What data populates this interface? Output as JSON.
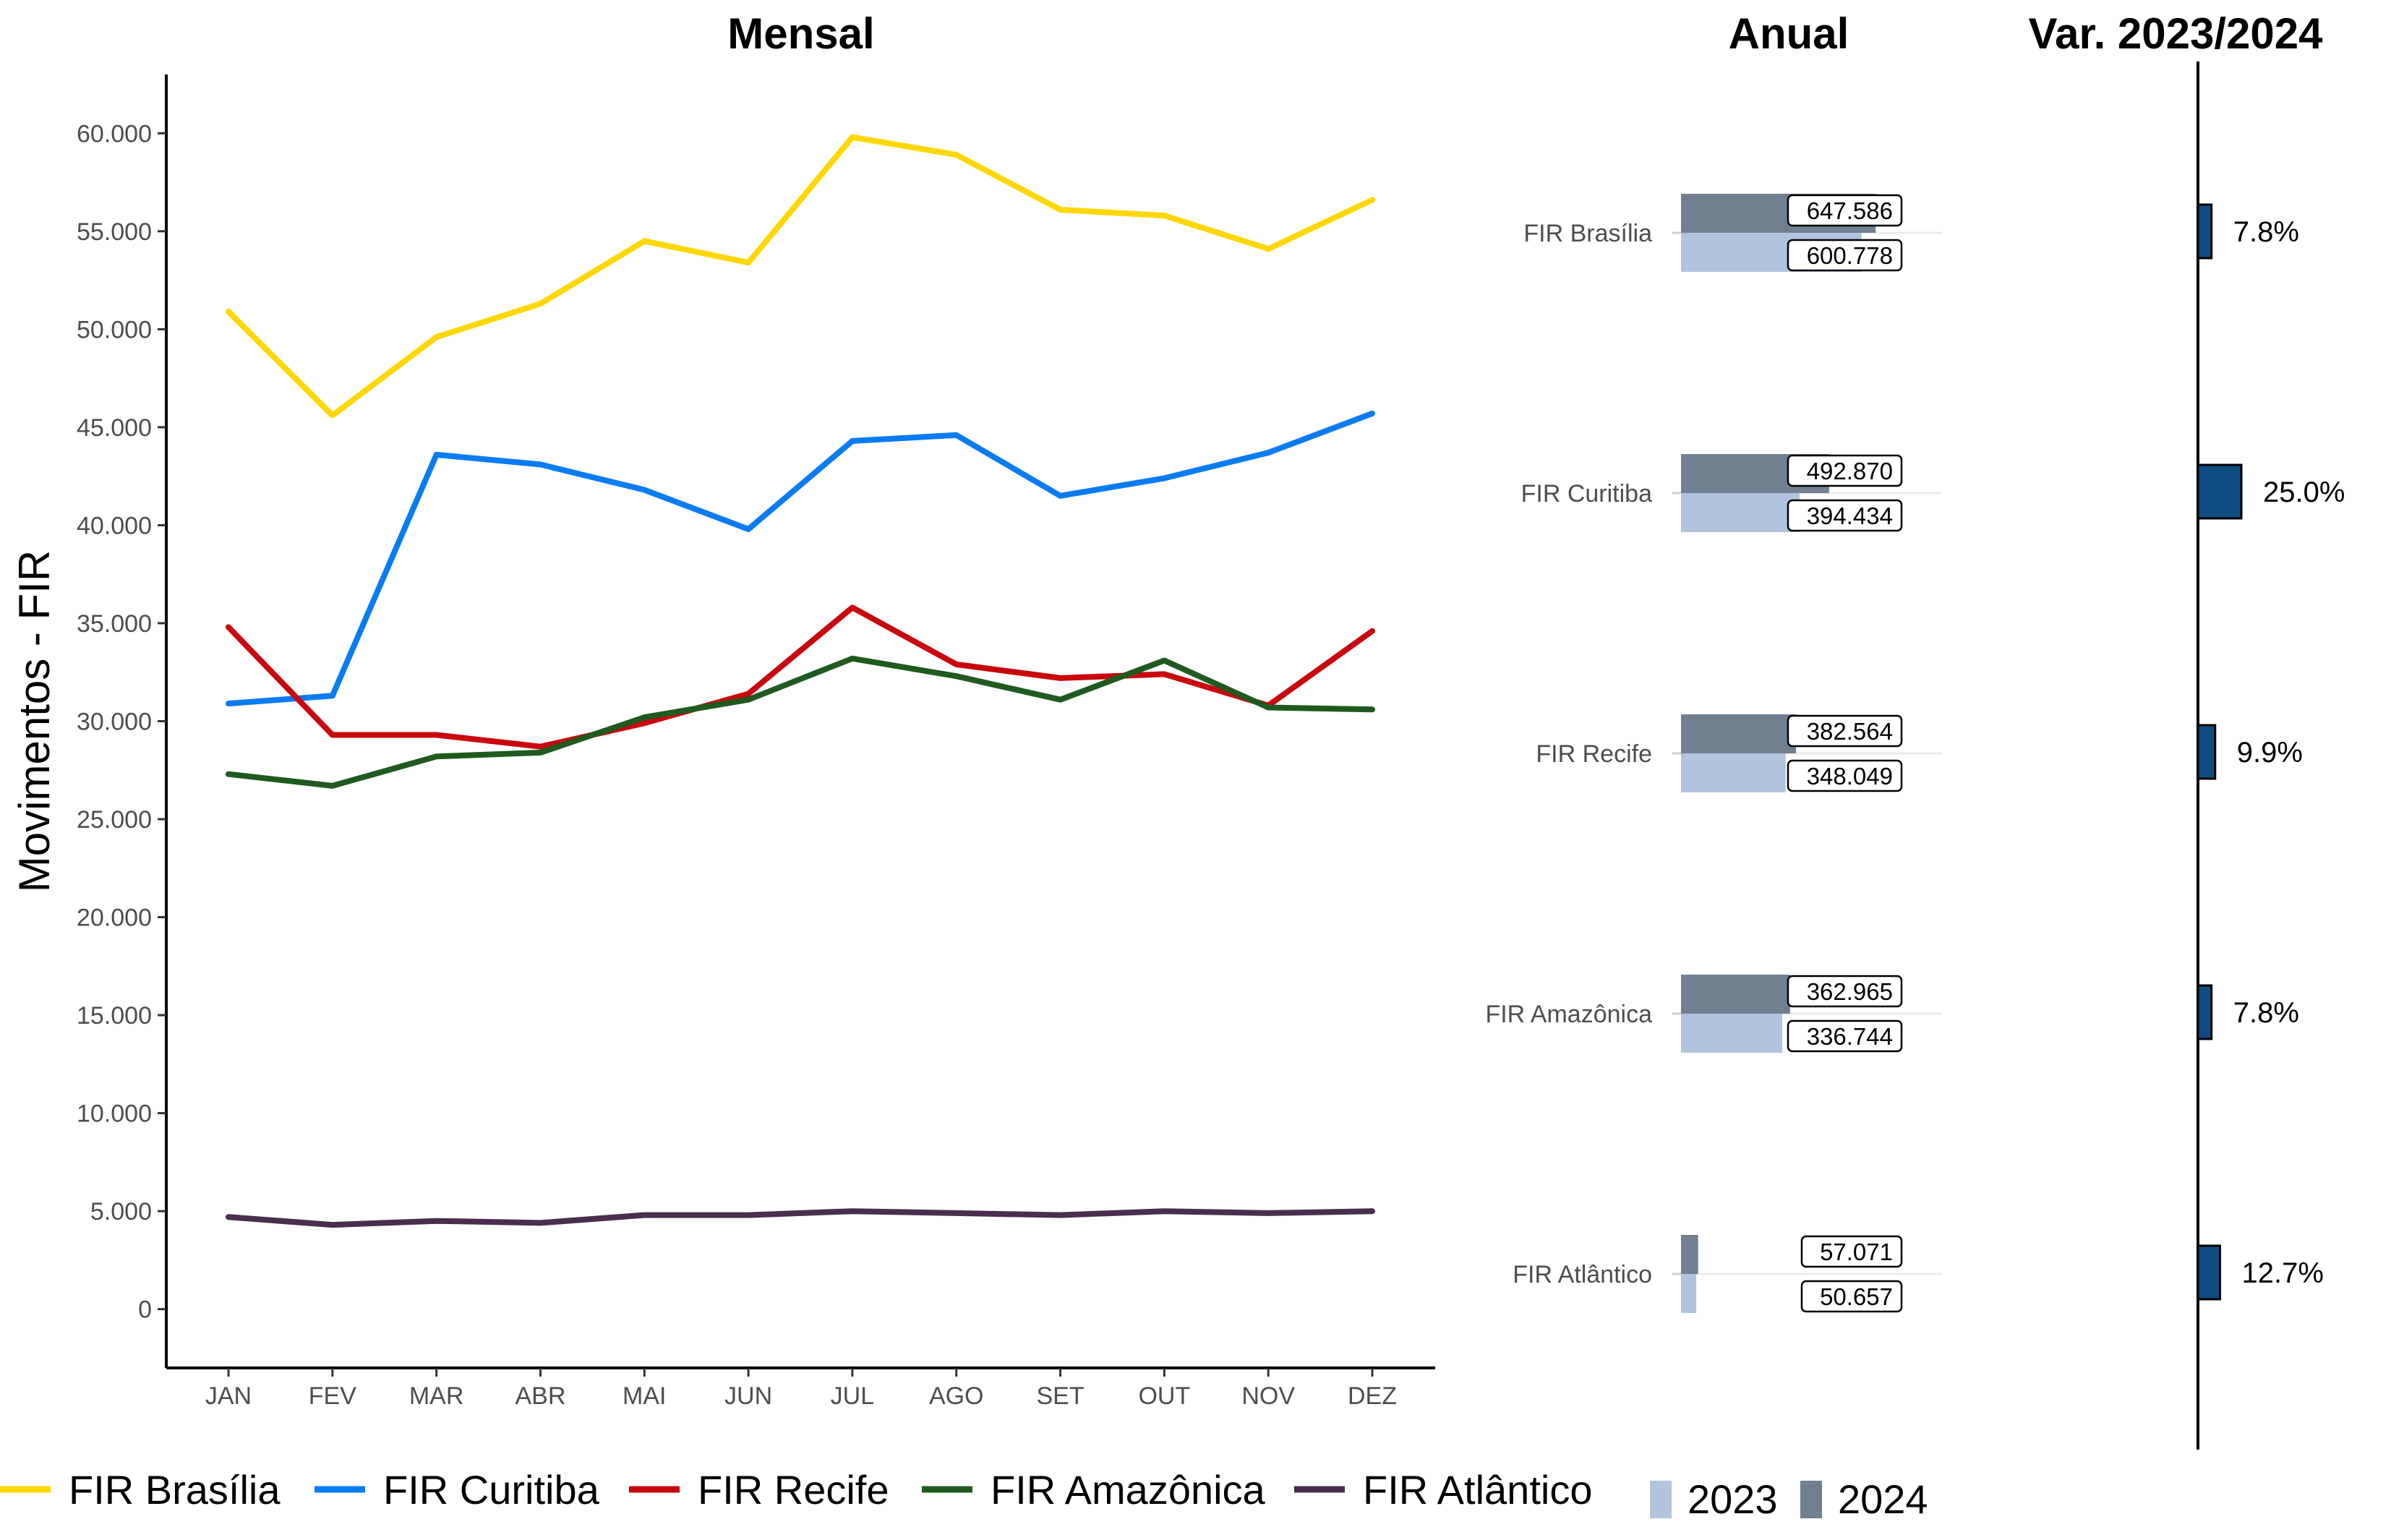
{
  "titles": {
    "monthly": "Mensal",
    "annual": "Anual",
    "variation": "Var. 2023/2024"
  },
  "colors": {
    "FIR Brasília": "#FFD700",
    "FIR Curitiba": "#0A7CF3",
    "FIR Recife": "#C8080E",
    "FIR Amazônica": "#1F5A1F",
    "FIR Atlântico": "#4A2D4F",
    "year2023": "#B0C4DE",
    "year2024": "#708090",
    "variation_bar": "#0F4C81"
  },
  "chart_data": [
    {
      "type": "line",
      "title": "Mensal",
      "ylabel": "Movimentos - FIR",
      "categories": [
        "JAN",
        "FEV",
        "MAR",
        "ABR",
        "MAI",
        "JUN",
        "JUL",
        "AGO",
        "SET",
        "OUT",
        "NOV",
        "DEZ"
      ],
      "ylim": [
        -3000,
        63000
      ],
      "yticks": [
        0,
        5000,
        10000,
        15000,
        20000,
        25000,
        30000,
        35000,
        40000,
        45000,
        50000,
        55000,
        60000
      ],
      "ytick_labels": [
        "0",
        "5.000",
        "10.000",
        "15.000",
        "20.000",
        "25.000",
        "30.000",
        "35.000",
        "40.000",
        "45.000",
        "50.000",
        "55.000",
        "60.000"
      ],
      "grid": false,
      "legend": "bottom",
      "series": [
        {
          "name": "FIR Brasília",
          "values": [
            50900,
            45600,
            49600,
            51300,
            54500,
            53400,
            59800,
            58900,
            56100,
            55800,
            54100,
            56600
          ]
        },
        {
          "name": "FIR Curitiba",
          "values": [
            30900,
            31300,
            43600,
            43100,
            41800,
            39800,
            44300,
            44600,
            41500,
            42400,
            43700,
            45700
          ]
        },
        {
          "name": "FIR Recife",
          "values": [
            34800,
            29300,
            29300,
            28700,
            29900,
            31400,
            35800,
            32900,
            32200,
            32400,
            30800,
            34600
          ]
        },
        {
          "name": "FIR Amazônica",
          "values": [
            27300,
            26700,
            28200,
            28400,
            30200,
            31100,
            33200,
            32300,
            31100,
            33100,
            30700,
            30600
          ]
        },
        {
          "name": "FIR Atlântico",
          "values": [
            4700,
            4300,
            4500,
            4400,
            4800,
            4800,
            5000,
            4900,
            4800,
            5000,
            4900,
            5000
          ]
        }
      ]
    },
    {
      "type": "bar",
      "title": "Anual",
      "categories": [
        "FIR Brasília",
        "FIR Curitiba",
        "FIR Recife",
        "FIR Amazônica",
        "FIR Atlântico"
      ],
      "legend": "bottom",
      "xlim": [
        0,
        700000
      ],
      "series": [
        {
          "name": "2024",
          "values": [
            647586,
            492870,
            382564,
            362965,
            57071
          ],
          "labels": [
            "647.586",
            "492.870",
            "382.564",
            "362.965",
            "57.071"
          ]
        },
        {
          "name": "2023",
          "values": [
            600778,
            394434,
            348049,
            336744,
            50657
          ],
          "labels": [
            "600.778",
            "394.434",
            "348.049",
            "336.744",
            "50.657"
          ]
        }
      ]
    },
    {
      "type": "bar",
      "title": "Var. 2023/2024",
      "categories": [
        "FIR Brasília",
        "FIR Curitiba",
        "FIR Recife",
        "FIR Amazônica",
        "FIR Atlântico"
      ],
      "xlim": [
        0,
        400
      ],
      "values": [
        7.8,
        25.0,
        9.9,
        7.8,
        12.7
      ],
      "labels": [
        "7.8%",
        "25.0%",
        "9.9%",
        "7.8%",
        "12.7%"
      ]
    }
  ],
  "legend": {
    "lines": [
      "FIR Brasília",
      "FIR Curitiba",
      "FIR Recife",
      "FIR Amazônica",
      "FIR Atlântico"
    ],
    "years": [
      "2023",
      "2024"
    ]
  }
}
